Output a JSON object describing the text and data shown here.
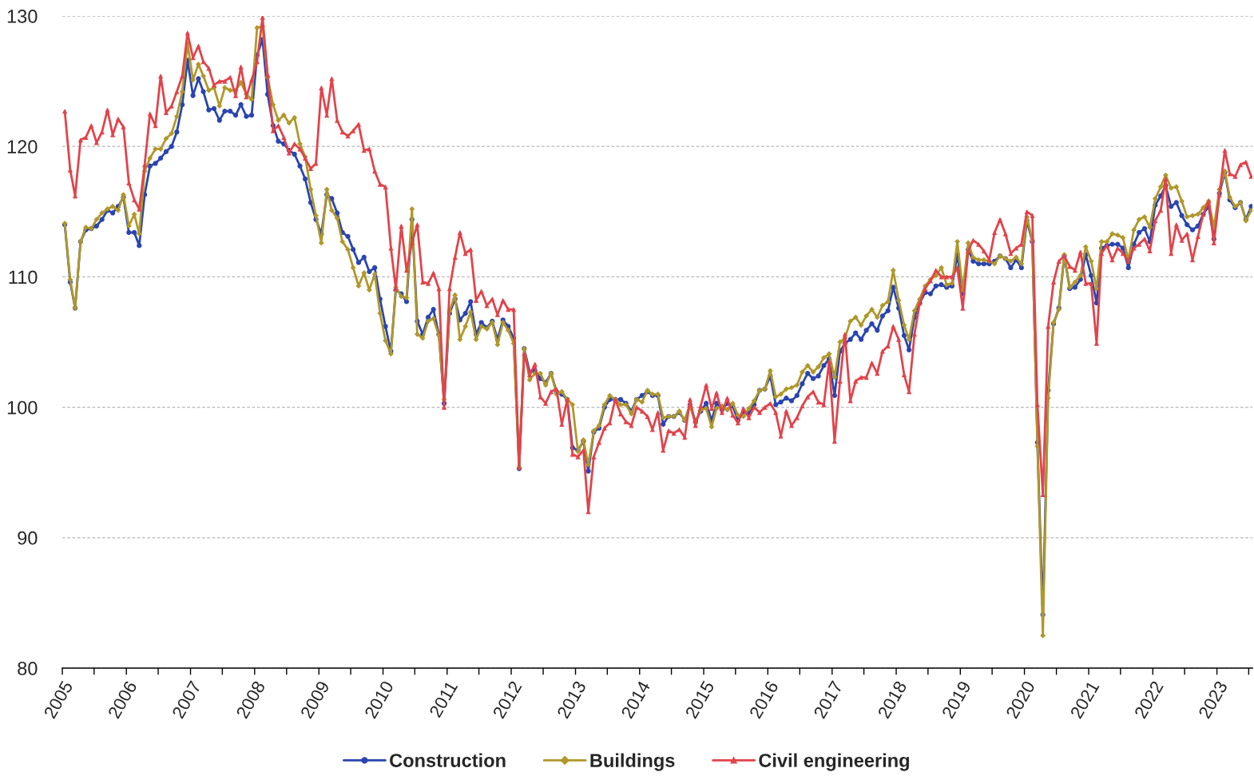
{
  "chart_data": {
    "type": "line",
    "x": [
      "2005-01",
      "2005-02",
      "2005-03",
      "2005-04",
      "2005-05",
      "2005-06",
      "2005-07",
      "2005-08",
      "2005-09",
      "2005-10",
      "2005-11",
      "2005-12",
      "2006-01",
      "2006-02",
      "2006-03",
      "2006-04",
      "2006-05",
      "2006-06",
      "2006-07",
      "2006-08",
      "2006-09",
      "2006-10",
      "2006-11",
      "2006-12",
      "2007-01",
      "2007-02",
      "2007-03",
      "2007-04",
      "2007-05",
      "2007-06",
      "2007-07",
      "2007-08",
      "2007-09",
      "2007-10",
      "2007-11",
      "2007-12",
      "2008-01",
      "2008-02",
      "2008-03",
      "2008-04",
      "2008-05",
      "2008-06",
      "2008-07",
      "2008-08",
      "2008-09",
      "2008-10",
      "2008-11",
      "2008-12",
      "2009-01",
      "2009-02",
      "2009-03",
      "2009-04",
      "2009-05",
      "2009-06",
      "2009-07",
      "2009-08",
      "2009-09",
      "2009-10",
      "2009-11",
      "2009-12",
      "2010-01",
      "2010-02",
      "2010-03",
      "2010-04",
      "2010-05",
      "2010-06",
      "2010-07",
      "2010-08",
      "2010-09",
      "2010-10",
      "2010-11",
      "2010-12",
      "2011-01",
      "2011-02",
      "2011-03",
      "2011-04",
      "2011-05",
      "2011-06",
      "2011-07",
      "2011-08",
      "2011-09",
      "2011-10",
      "2011-11",
      "2011-12",
      "2012-01",
      "2012-02",
      "2012-03",
      "2012-04",
      "2012-05",
      "2012-06",
      "2012-07",
      "2012-08",
      "2012-09",
      "2012-10",
      "2012-11",
      "2012-12",
      "2013-01",
      "2013-02",
      "2013-03",
      "2013-04",
      "2013-05",
      "2013-06",
      "2013-07",
      "2013-08",
      "2013-09",
      "2013-10",
      "2013-11",
      "2013-12",
      "2014-01",
      "2014-02",
      "2014-03",
      "2014-04",
      "2014-05",
      "2014-06",
      "2014-07",
      "2014-08",
      "2014-09",
      "2014-10",
      "2014-11",
      "2014-12",
      "2015-01",
      "2015-02",
      "2015-03",
      "2015-04",
      "2015-05",
      "2015-06",
      "2015-07",
      "2015-08",
      "2015-09",
      "2015-10",
      "2015-11",
      "2015-12",
      "2016-01",
      "2016-02",
      "2016-03",
      "2016-04",
      "2016-05",
      "2016-06",
      "2016-07",
      "2016-08",
      "2016-09",
      "2016-10",
      "2016-11",
      "2016-12",
      "2017-01",
      "2017-02",
      "2017-03",
      "2017-04",
      "2017-05",
      "2017-06",
      "2017-07",
      "2017-08",
      "2017-09",
      "2017-10",
      "2017-11",
      "2017-12",
      "2018-01",
      "2018-02",
      "2018-03",
      "2018-04",
      "2018-05",
      "2018-06",
      "2018-07",
      "2018-08",
      "2018-09",
      "2018-10",
      "2018-11",
      "2018-12",
      "2019-01",
      "2019-02",
      "2019-03",
      "2019-04",
      "2019-05",
      "2019-06",
      "2019-07",
      "2019-08",
      "2019-09",
      "2019-10",
      "2019-11",
      "2019-12",
      "2020-01",
      "2020-02",
      "2020-03",
      "2020-04",
      "2020-05",
      "2020-06",
      "2020-07",
      "2020-08",
      "2020-09",
      "2020-10",
      "2020-11",
      "2020-12",
      "2021-01",
      "2021-02",
      "2021-03",
      "2021-04",
      "2021-05",
      "2021-06",
      "2021-07",
      "2021-08",
      "2021-09",
      "2021-10",
      "2021-11",
      "2021-12",
      "2022-01",
      "2022-02",
      "2022-03",
      "2022-04",
      "2022-05",
      "2022-06",
      "2022-07",
      "2022-08",
      "2022-09",
      "2022-10",
      "2022-11",
      "2022-12",
      "2023-01",
      "2023-02",
      "2023-03",
      "2023-04",
      "2023-05",
      "2023-06",
      "2023-07"
    ],
    "series": [
      {
        "name": "Construction",
        "color": "#2a45b0",
        "marker": "circle",
        "values": [
          114.0,
          109.6,
          107.6,
          112.7,
          113.6,
          113.7,
          113.9,
          114.4,
          115.1,
          114.9,
          115.4,
          116.1,
          113.4,
          113.4,
          112.4,
          116.3,
          118.5,
          118.7,
          119.1,
          119.6,
          120.0,
          121.1,
          123.2,
          126.6,
          123.9,
          125.2,
          124.2,
          122.8,
          122.9,
          122.0,
          122.7,
          122.7,
          122.4,
          123.2,
          122.3,
          122.4,
          127.0,
          128.2,
          124.0,
          121.6,
          120.4,
          120.2,
          119.7,
          119.4,
          118.5,
          117.5,
          115.7,
          114.4,
          113.3,
          116.3,
          116.0,
          114.9,
          113.4,
          113.1,
          112.1,
          111.1,
          111.5,
          110.4,
          110.7,
          108.3,
          106.2,
          104.3,
          109.0,
          108.7,
          108.1,
          114.4,
          106.6,
          105.6,
          106.9,
          107.5,
          105.6,
          100.3,
          107.2,
          108.3,
          106.7,
          107.2,
          108.1,
          105.6,
          106.5,
          106.1,
          106.6,
          105.2,
          106.7,
          106.2,
          105.3,
          95.3,
          104.5,
          102.7,
          102.8,
          102.2,
          101.9,
          102.6,
          101.2,
          101.0,
          100.6,
          96.9,
          96.7,
          97.4,
          95.1,
          98.1,
          98.4,
          100.0,
          100.6,
          100.6,
          100.6,
          100.3,
          99.7,
          100.6,
          100.9,
          101.2,
          100.9,
          100.9,
          98.7,
          99.3,
          99.3,
          99.6,
          99.0,
          100.2,
          98.9,
          99.7,
          100.3,
          99.0,
          100.3,
          99.8,
          100.3,
          100.1,
          99.0,
          99.6,
          99.6,
          100.2,
          101.3,
          101.4,
          102.4,
          100.2,
          100.4,
          100.7,
          100.5,
          100.9,
          101.8,
          102.6,
          102.2,
          102.4,
          103.2,
          103.7,
          100.9,
          104.3,
          104.9,
          105.2,
          105.7,
          105.2,
          105.9,
          106.4,
          105.9,
          107.0,
          107.4,
          109.2,
          107.6,
          105.5,
          104.4,
          106.9,
          108.0,
          108.8,
          108.7,
          109.3,
          109.4,
          109.2,
          109.3,
          111.7,
          108.7,
          112.1,
          111.2,
          111.0,
          111.0,
          111.0,
          111.2,
          111.6,
          111.4,
          110.7,
          111.3,
          110.7,
          114.3,
          112.7,
          97.3,
          84.1,
          101.3,
          106.4,
          107.6,
          111.6,
          109.1,
          109.2,
          109.8,
          111.7,
          110.1,
          108.0,
          112.2,
          112.4,
          112.5,
          112.5,
          112.2,
          110.7,
          112.5,
          113.4,
          113.7,
          112.7,
          115.5,
          116.2,
          117.0,
          115.4,
          115.7,
          114.7,
          114.0,
          113.6,
          113.9,
          114.8,
          115.4,
          112.9,
          116.4,
          118.0,
          115.9,
          115.3,
          115.7,
          114.4,
          115.4
        ]
      },
      {
        "name": "Buildings",
        "color": "#b0982a",
        "marker": "diamond",
        "values": [
          114.1,
          109.8,
          107.6,
          112.7,
          113.8,
          113.7,
          114.4,
          114.9,
          115.2,
          115.4,
          115.1,
          116.3,
          113.9,
          114.8,
          113.3,
          118.1,
          119.1,
          119.8,
          119.8,
          120.6,
          121.0,
          122.3,
          124.2,
          127.9,
          125.1,
          126.3,
          125.4,
          124.3,
          124.5,
          123.1,
          124.5,
          124.3,
          124.3,
          124.9,
          124.0,
          123.6,
          129.1,
          129.2,
          125.3,
          123.2,
          122.0,
          122.4,
          121.8,
          122.2,
          120.2,
          119.2,
          116.7,
          114.7,
          112.6,
          116.7,
          115.1,
          114.5,
          112.7,
          112.1,
          110.7,
          109.3,
          110.3,
          109.0,
          110.2,
          107.2,
          105.1,
          104.1,
          109.2,
          108.5,
          108.4,
          115.2,
          105.6,
          105.3,
          106.6,
          106.8,
          105.5,
          100.6,
          107.4,
          108.6,
          105.2,
          106.2,
          107.3,
          105.2,
          106.2,
          106.0,
          106.5,
          104.8,
          106.5,
          105.9,
          104.9,
          95.4,
          104.5,
          102.1,
          102.6,
          102.6,
          101.7,
          102.6,
          101.0,
          101.2,
          100.6,
          100.2,
          96.6,
          97.5,
          95.6,
          98.2,
          98.6,
          100.2,
          100.9,
          100.6,
          100.2,
          100.2,
          99.5,
          100.6,
          100.4,
          101.3,
          101.0,
          101.0,
          99.2,
          99.3,
          99.3,
          99.7,
          99.0,
          100.1,
          98.8,
          99.8,
          99.9,
          98.5,
          99.9,
          100.1,
          99.8,
          100.3,
          99.4,
          99.3,
          99.9,
          100.5,
          101.3,
          101.4,
          102.8,
          100.8,
          101.0,
          101.4,
          101.5,
          101.7,
          102.7,
          103.2,
          102.7,
          103.1,
          103.8,
          104.1,
          102.3,
          105.0,
          105.3,
          106.6,
          106.9,
          106.3,
          107.0,
          107.5,
          106.9,
          107.8,
          108.1,
          110.5,
          108.2,
          106.3,
          105.2,
          107.4,
          108.3,
          109.3,
          109.8,
          110.1,
          110.7,
          109.4,
          109.5,
          112.7,
          109.0,
          112.6,
          111.5,
          111.3,
          111.3,
          111.2,
          111.0,
          111.6,
          111.4,
          111.2,
          111.5,
          111.0,
          114.6,
          112.8,
          97.0,
          82.5,
          100.7,
          106.5,
          107.5,
          111.7,
          109.2,
          109.6,
          110.1,
          112.3,
          111.2,
          109.1,
          112.7,
          112.7,
          113.3,
          113.2,
          113.0,
          111.3,
          113.6,
          114.4,
          114.6,
          113.8,
          116.0,
          116.9,
          117.8,
          116.8,
          116.9,
          115.8,
          114.6,
          114.7,
          114.8,
          115.3,
          115.8,
          113.8,
          116.7,
          118.1,
          116.1,
          115.4,
          115.7,
          114.3,
          115.1
        ]
      },
      {
        "name": "Civil engineering",
        "color": "#e2434a",
        "marker": "triangle",
        "values": [
          122.7,
          118.2,
          116.2,
          120.5,
          120.7,
          121.6,
          120.3,
          121.1,
          122.8,
          120.9,
          122.1,
          121.5,
          117.2,
          115.9,
          115.2,
          118.6,
          122.5,
          121.6,
          125.4,
          122.6,
          123.1,
          124.2,
          125.4,
          128.7,
          126.8,
          127.7,
          126.5,
          126.0,
          124.7,
          125.0,
          125.0,
          125.3,
          123.9,
          126.1,
          123.8,
          125.1,
          126.5,
          129.9,
          125.5,
          121.2,
          121.6,
          120.7,
          119.5,
          120.2,
          119.8,
          119.1,
          118.3,
          118.7,
          124.5,
          122.4,
          125.2,
          122.0,
          121.1,
          120.8,
          121.2,
          121.7,
          119.7,
          119.8,
          118.1,
          117.1,
          116.9,
          112.2,
          109.1,
          113.9,
          110.5,
          112.6,
          114.0,
          109.6,
          109.5,
          110.3,
          109.1,
          100.0,
          109.1,
          111.5,
          113.4,
          111.8,
          112.1,
          108.2,
          108.9,
          107.8,
          108.3,
          107.1,
          108.2,
          107.5,
          107.5,
          95.4,
          104.1,
          102.5,
          103.3,
          100.8,
          100.3,
          101.2,
          101.4,
          98.7,
          100.6,
          96.4,
          96.2,
          96.7,
          92.0,
          96.2,
          97.3,
          98.4,
          98.8,
          100.6,
          99.5,
          98.9,
          98.6,
          100.0,
          99.7,
          99.3,
          98.3,
          99.6,
          96.7,
          98.2,
          98.0,
          98.3,
          97.7,
          100.6,
          98.6,
          100.1,
          101.7,
          99.9,
          101.1,
          99.6,
          100.7,
          99.4,
          98.8,
          99.9,
          99.2,
          100.0,
          99.6,
          100.0,
          100.3,
          99.6,
          97.8,
          99.7,
          98.6,
          99.2,
          100.1,
          100.8,
          101.2,
          100.4,
          100.2,
          103.5,
          97.4,
          102.0,
          105.6,
          100.5,
          102.0,
          102.3,
          102.3,
          103.4,
          102.6,
          104.3,
          104.7,
          106.2,
          105.2,
          102.5,
          101.2,
          105.6,
          108.0,
          109.1,
          109.7,
          110.5,
          110.0,
          110.0,
          110.0,
          110.7,
          107.6,
          112.0,
          112.8,
          112.5,
          112.0,
          111.3,
          113.4,
          114.4,
          113.3,
          111.8,
          112.2,
          112.5,
          115.0,
          114.7,
          100.2,
          93.3,
          106.2,
          109.6,
          111.2,
          111.6,
          110.8,
          110.5,
          111.9,
          109.5,
          109.5,
          104.9,
          111.8,
          112.4,
          111.3,
          112.2,
          111.8,
          111.2,
          112.2,
          112.5,
          112.9,
          112.0,
          114.3,
          115.1,
          117.5,
          111.8,
          114.0,
          112.8,
          113.3,
          111.3,
          113.1,
          114.8,
          115.8,
          112.6,
          116.3,
          119.7,
          117.9,
          117.7,
          118.6,
          118.8,
          117.7
        ]
      }
    ],
    "xlim": [
      "2005-01-01",
      "2023-07-22"
    ],
    "xticks": [
      {
        "value": "2005-01-01",
        "label": "2005"
      },
      {
        "value": "2005-07-01",
        "label": null
      },
      {
        "value": "2006-01-01",
        "label": "2006"
      },
      {
        "value": "2006-07-01",
        "label": null
      },
      {
        "value": "2007-01-01",
        "label": "2007"
      },
      {
        "value": "2007-07-01",
        "label": null
      },
      {
        "value": "2008-01-01",
        "label": "2008"
      },
      {
        "value": "2008-07-01",
        "label": null
      },
      {
        "value": "2009-01-01",
        "label": "2009"
      },
      {
        "value": "2009-07-01",
        "label": null
      },
      {
        "value": "2010-01-01",
        "label": "2010"
      },
      {
        "value": "2010-07-01",
        "label": null
      },
      {
        "value": "2011-01-01",
        "label": "2011"
      },
      {
        "value": "2011-07-01",
        "label": null
      },
      {
        "value": "2012-01-01",
        "label": "2012"
      },
      {
        "value": "2012-07-01",
        "label": null
      },
      {
        "value": "2013-01-01",
        "label": "2013"
      },
      {
        "value": "2013-07-01",
        "label": null
      },
      {
        "value": "2014-01-01",
        "label": "2014"
      },
      {
        "value": "2014-07-01",
        "label": null
      },
      {
        "value": "2015-01-01",
        "label": "2015"
      },
      {
        "value": "2015-07-01",
        "label": null
      },
      {
        "value": "2016-01-01",
        "label": "2016"
      },
      {
        "value": "2016-07-01",
        "label": null
      },
      {
        "value": "2017-01-01",
        "label": "2017"
      },
      {
        "value": "2017-07-01",
        "label": null
      },
      {
        "value": "2018-01-01",
        "label": "2018"
      },
      {
        "value": "2018-07-01",
        "label": null
      },
      {
        "value": "2019-01-01",
        "label": "2019"
      },
      {
        "value": "2019-07-01",
        "label": null
      },
      {
        "value": "2020-01-01",
        "label": "2020"
      },
      {
        "value": "2020-07-01",
        "label": null
      },
      {
        "value": "2021-01-01",
        "label": "2021"
      },
      {
        "value": "2021-07-01",
        "label": null
      },
      {
        "value": "2022-01-01",
        "label": "2022"
      },
      {
        "value": "2022-07-01",
        "label": null
      },
      {
        "value": "2023-01-01",
        "label": "2023"
      },
      {
        "value": "2023-07-01",
        "label": null
      }
    ],
    "ylim": [
      80,
      130
    ],
    "yticks": [
      80,
      90,
      100,
      110,
      120,
      130
    ],
    "grid": "y",
    "legend": "bottom",
    "line_style": "solid"
  }
}
